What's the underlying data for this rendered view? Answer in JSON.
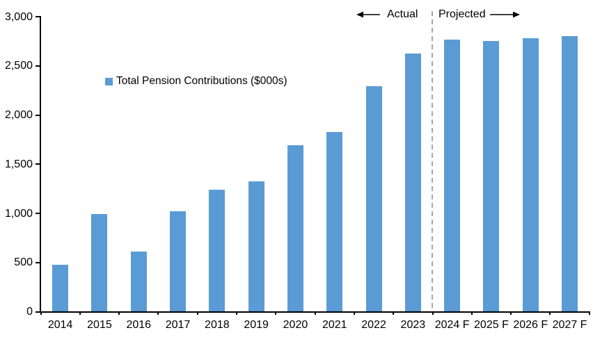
{
  "chart_data": {
    "type": "bar",
    "legend_label": "Total Pension Contributions ($000s)",
    "categories": [
      "2014",
      "2015",
      "2016",
      "2017",
      "2018",
      "2019",
      "2020",
      "2021",
      "2022",
      "2023",
      "2024 F",
      "2025 F",
      "2026 F",
      "2027 F"
    ],
    "values": [
      470,
      990,
      610,
      1020,
      1240,
      1320,
      1690,
      1820,
      2290,
      2620,
      2760,
      2750,
      2780,
      2800
    ],
    "series_name": "Total Pension Contributions ($000s)",
    "annotations": {
      "actual": "Actual",
      "projected": "Projected"
    },
    "actual_categories_count": 10,
    "y_axis": {
      "min": 0,
      "max": 3000,
      "tick_interval": 500,
      "tick_values": [
        0,
        500,
        1000,
        1500,
        2000,
        2500,
        3000
      ],
      "tick_labels": [
        "0",
        "500",
        "1,000",
        "1,500",
        "2,000",
        "2,500",
        "3,000"
      ]
    },
    "colors": {
      "bar": "#5B9BD5",
      "divider": "#A6A6A6",
      "axis": "#000000",
      "text": "#000000"
    },
    "grid": false,
    "legend_position": "inside-upper-left"
  }
}
